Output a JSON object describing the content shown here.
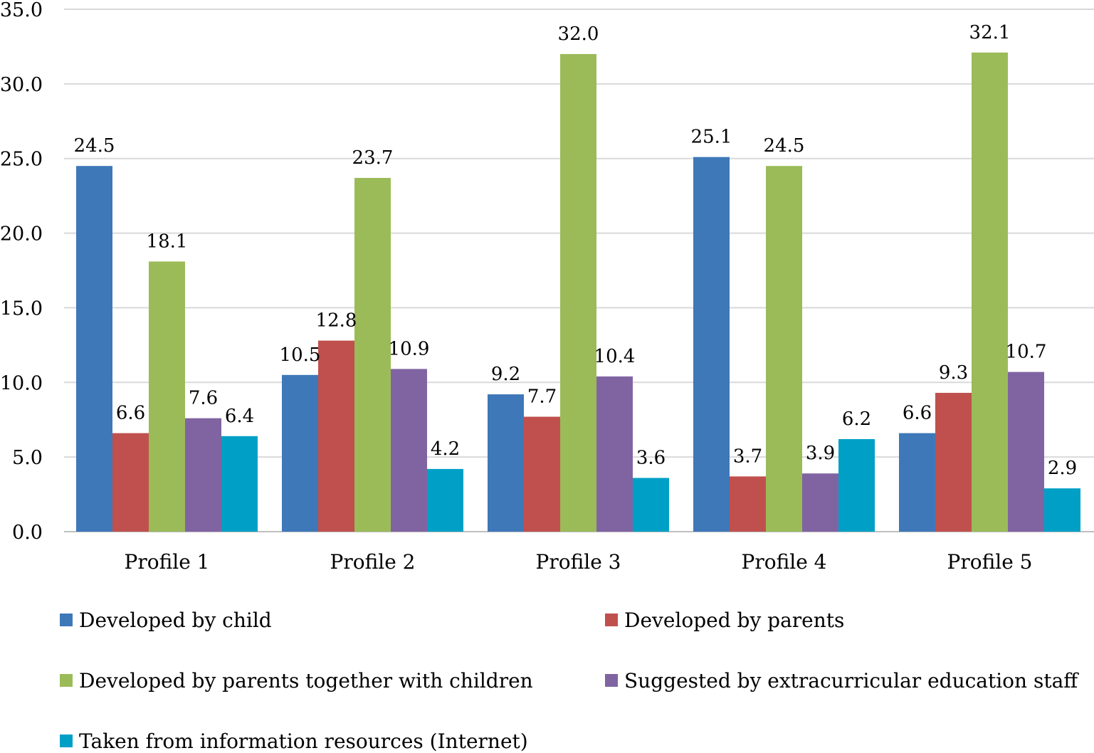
{
  "chart_data": {
    "type": "bar",
    "title": "",
    "xlabel": "",
    "ylabel": "",
    "ylim": [
      0,
      35
    ],
    "yticks": [
      "0.0",
      "5.0",
      "10.0",
      "15.0",
      "20.0",
      "25.0",
      "30.0",
      "35.0"
    ],
    "grid": true,
    "legend_position": "bottom",
    "categories": [
      "Profile 1",
      "Profile 2",
      "Profile 3",
      "Profile 4",
      "Profile 5"
    ],
    "series": [
      {
        "name": "Developed by child",
        "color": "#3e78b8",
        "values": [
          24.5,
          10.5,
          9.2,
          25.1,
          6.6
        ],
        "labels": [
          "24.5",
          "10.5",
          "9.2",
          "25.1",
          "6.6"
        ]
      },
      {
        "name": "Developed by parents",
        "color": "#c0504d",
        "values": [
          6.6,
          12.8,
          7.7,
          3.7,
          9.3
        ],
        "labels": [
          "6.6",
          "12.8",
          "7.7",
          "3.7",
          "9.3"
        ]
      },
      {
        "name": "Developed by parents together with children",
        "color": "#9bbb59",
        "values": [
          18.1,
          23.7,
          32.0,
          24.5,
          32.1
        ],
        "labels": [
          "18.1",
          "23.7",
          "32.0",
          "24.5",
          "32.1"
        ]
      },
      {
        "name": "Suggested by extracurricular education staff",
        "color": "#8064a2",
        "values": [
          7.6,
          10.9,
          10.4,
          3.9,
          10.7
        ],
        "labels": [
          "7.6",
          "10.9",
          "10.4",
          "3.9",
          "10.7"
        ]
      },
      {
        "name": "Taken from information resources (Internet)",
        "color": "#00a0c6",
        "values": [
          6.4,
          4.2,
          3.6,
          6.2,
          2.9
        ],
        "labels": [
          "6.4",
          "4.2",
          "3.6",
          "6.2",
          "2.9"
        ]
      }
    ]
  }
}
